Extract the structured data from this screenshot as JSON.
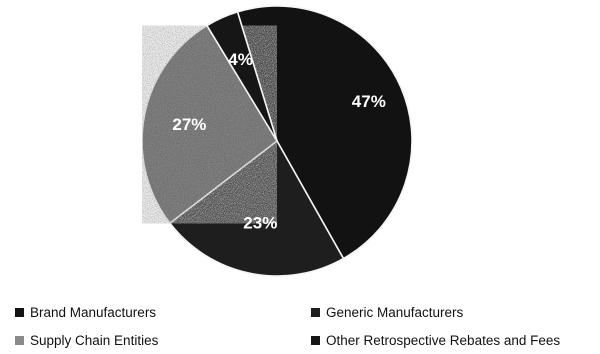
{
  "chart_data": {
    "type": "pie",
    "title": "",
    "categories": [
      "Brand Manufacturers",
      "Generic Manufacturers",
      "Supply Chain Entities",
      "Other Retrospective Rebates and Fees"
    ],
    "values": [
      47,
      23,
      27,
      4
    ],
    "labels": [
      "47%",
      "23%",
      "27%",
      "4%"
    ],
    "legend_position": "bottom",
    "colors": {
      "Brand Manufacturers": "#121212",
      "Generic Manufacturers": "#1e1e1e",
      "Supply Chain Entities": "#8a8a8a",
      "Other Retrospective Rebates and Fees": "#161616"
    },
    "label_colors": [
      "#ffffff",
      "#ffffff",
      "#ffffff",
      "#ffffff"
    ]
  },
  "legend": {
    "items": [
      {
        "label": "Brand Manufacturers",
        "color": "#121212"
      },
      {
        "label": "Generic Manufacturers",
        "color": "#1e1e1e"
      },
      {
        "label": "Supply Chain Entities",
        "color": "#8a8a8a"
      },
      {
        "label": "Other Retrospective Rebates and Fees",
        "color": "#161616"
      }
    ]
  }
}
